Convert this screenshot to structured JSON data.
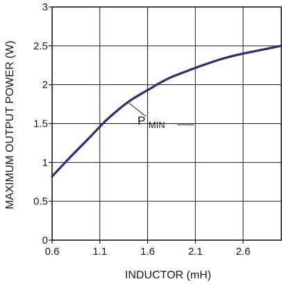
{
  "chart_data": {
    "type": "line",
    "title": "",
    "xlabel": "INDUCTOR (mH)",
    "ylabel": "MAXIMUM OUTPUT POWER (W)",
    "xlim": [
      0.6,
      3.0
    ],
    "ylim": [
      0,
      3
    ],
    "x_ticks": [
      "0.6",
      "1.1",
      "1.6",
      "2.1",
      "2.6"
    ],
    "y_ticks": [
      "0",
      "0.5",
      "1",
      "1.5",
      "2",
      "2.5",
      "3"
    ],
    "grid": true,
    "legend": "none",
    "series": [
      {
        "name": "PMIN",
        "color": "#2e2e6e",
        "x": [
          0.6,
          0.8,
          1.0,
          1.1,
          1.2,
          1.4,
          1.6,
          1.8,
          2.0,
          2.2,
          2.4,
          2.6,
          2.8,
          3.0
        ],
        "y": [
          0.82,
          1.08,
          1.33,
          1.46,
          1.58,
          1.78,
          1.93,
          2.07,
          2.17,
          2.26,
          2.34,
          2.4,
          2.45,
          2.5
        ]
      }
    ],
    "annotations": [
      {
        "text_main": "P",
        "text_sub": "MIN",
        "x": 1.4,
        "y": 1.78
      }
    ]
  }
}
